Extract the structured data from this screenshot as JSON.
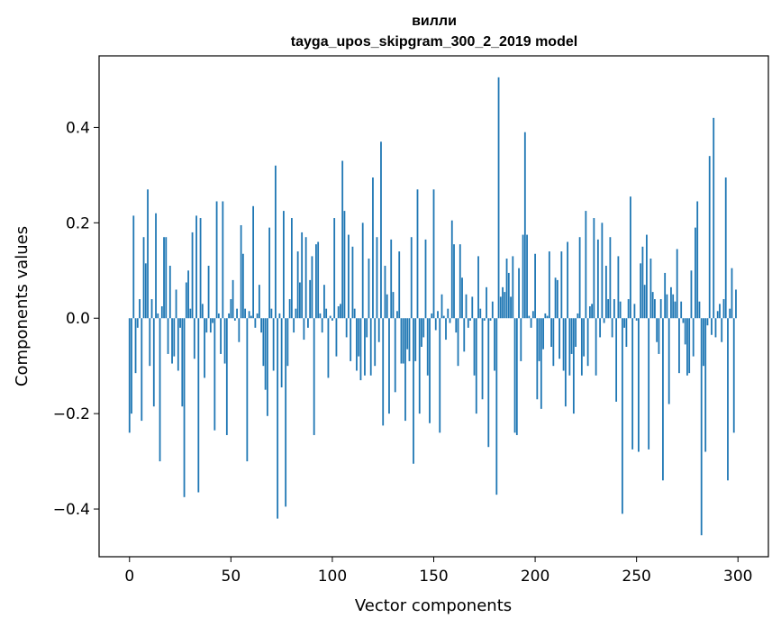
{
  "chart_data": {
    "type": "bar",
    "title": "вилли",
    "subtitle": "tayga_upos_skipgram_300_2_2019 model",
    "xlabel": "Vector components",
    "ylabel": "Components values",
    "xlim": [
      -15,
      315
    ],
    "ylim": [
      -0.5,
      0.55
    ],
    "xticks": [
      0,
      50,
      100,
      150,
      200,
      250,
      300
    ],
    "yticks": [
      -0.4,
      -0.2,
      0.0,
      0.2,
      0.4
    ],
    "ytick_labels": [
      "−0.4",
      "−0.2",
      "0.0",
      "0.2",
      "0.4"
    ],
    "grid": false,
    "color": "#1f77b4",
    "values": [
      -0.24,
      -0.2,
      0.215,
      -0.115,
      -0.02,
      0.04,
      -0.215,
      0.17,
      0.115,
      0.27,
      -0.1,
      0.04,
      -0.185,
      0.22,
      0.01,
      -0.3,
      0.025,
      0.17,
      0.17,
      -0.075,
      0.11,
      -0.095,
      -0.08,
      0.06,
      -0.11,
      -0.02,
      -0.185,
      -0.375,
      0.075,
      0.1,
      0.02,
      0.18,
      -0.085,
      0.215,
      -0.365,
      0.21,
      0.03,
      -0.125,
      -0.03,
      0.11,
      -0.03,
      -0.01,
      -0.235,
      0.245,
      0.01,
      -0.075,
      0.245,
      -0.095,
      -0.245,
      0.01,
      0.04,
      0.08,
      -0.005,
      0.02,
      -0.05,
      0.195,
      0.135,
      0.02,
      -0.3,
      0.015,
      0.005,
      0.235,
      -0.02,
      0.01,
      0.07,
      -0.03,
      -0.1,
      -0.15,
      -0.205,
      0.19,
      0.02,
      -0.11,
      0.32,
      -0.42,
      0.01,
      -0.145,
      0.225,
      -0.395,
      -0.1,
      0.04,
      0.21,
      -0.03,
      0.02,
      0.14,
      0.075,
      0.18,
      -0.045,
      0.17,
      -0.02,
      0.08,
      0.13,
      -0.245,
      0.155,
      0.16,
      0.01,
      -0.03,
      0.07,
      0.02,
      -0.125,
      0.005,
      -0.005,
      0.21,
      -0.08,
      0.025,
      0.03,
      0.33,
      0.225,
      -0.04,
      0.175,
      -0.09,
      0.15,
      0.02,
      -0.11,
      -0.08,
      -0.13,
      0.2,
      -0.12,
      -0.04,
      0.125,
      -0.12,
      0.295,
      -0.1,
      0.17,
      -0.05,
      0.37,
      -0.225,
      0.11,
      0.05,
      -0.2,
      0.165,
      0.055,
      -0.155,
      0.015,
      0.14,
      -0.095,
      -0.095,
      -0.215,
      -0.065,
      -0.09,
      0.17,
      -0.305,
      -0.09,
      0.27,
      -0.2,
      -0.06,
      -0.04,
      0.165,
      -0.12,
      -0.22,
      0.01,
      0.27,
      -0.025,
      0.015,
      -0.24,
      0.05,
      0.005,
      -0.045,
      0.02,
      -0.01,
      0.205,
      0.155,
      -0.03,
      -0.1,
      0.155,
      0.085,
      -0.07,
      0.05,
      -0.02,
      -0.005,
      0.045,
      -0.12,
      -0.2,
      0.13,
      0.02,
      -0.17,
      -0.005,
      0.065,
      -0.27,
      -0.005,
      0.035,
      -0.11,
      -0.37,
      0.505,
      0.045,
      0.065,
      0.055,
      0.125,
      0.095,
      0.045,
      0.13,
      -0.24,
      -0.245,
      0.105,
      -0.09,
      0.175,
      0.39,
      0.175,
      0.005,
      -0.02,
      0.015,
      0.135,
      -0.17,
      -0.09,
      -0.19,
      -0.065,
      0.01,
      0.005,
      0.14,
      -0.06,
      -0.1,
      0.085,
      0.08,
      -0.085,
      0.14,
      -0.11,
      -0.185,
      0.16,
      -0.12,
      -0.075,
      -0.2,
      -0.06,
      0.01,
      0.17,
      -0.12,
      -0.08,
      0.225,
      -0.1,
      0.025,
      0.03,
      0.21,
      -0.12,
      0.165,
      -0.04,
      0.2,
      -0.01,
      0.11,
      0.04,
      0.17,
      -0.04,
      0.04,
      -0.175,
      0.13,
      0.035,
      -0.41,
      -0.02,
      -0.06,
      0.04,
      0.255,
      -0.275,
      0.03,
      -0.005,
      -0.28,
      0.115,
      0.15,
      0.07,
      0.175,
      -0.275,
      0.125,
      0.055,
      0.04,
      -0.05,
      -0.075,
      0.04,
      -0.34,
      0.095,
      0.05,
      -0.18,
      0.065,
      0.05,
      0.035,
      0.145,
      -0.115,
      0.035,
      -0.01,
      -0.055,
      -0.12,
      -0.115,
      0.1,
      -0.08,
      0.19,
      0.245,
      0.035,
      -0.455,
      -0.1,
      -0.28,
      -0.015,
      0.34,
      -0.035,
      0.42,
      -0.04,
      0.015,
      0.03,
      -0.05,
      0.04,
      0.295,
      -0.34,
      0.02,
      0.105,
      -0.24,
      0.06
    ]
  }
}
